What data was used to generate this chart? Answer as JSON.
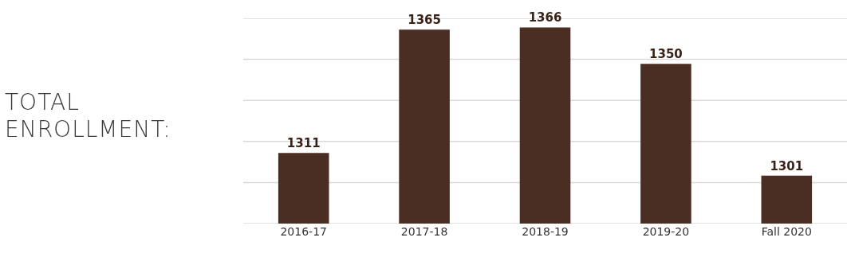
{
  "chart_data": {
    "type": "bar",
    "title": "TOTAL ENROLLMENT:",
    "categories": [
      "2016-17",
      "2017-18",
      "2018-19",
      "2019-20",
      "Fall 2020"
    ],
    "values": [
      1311,
      1365,
      1366,
      1350,
      1301
    ],
    "color": "#4a2e24",
    "data_labels": true,
    "grid": "y",
    "tick_labels": "x",
    "ylim": [
      1280,
      1370
    ],
    "yticks": [
      {
        "value": 1280,
        "label": null
      },
      {
        "value": 1298,
        "label": null
      },
      {
        "value": 1316,
        "label": null
      },
      {
        "value": 1334,
        "label": null
      },
      {
        "value": 1352,
        "label": null
      },
      {
        "value": 1370,
        "label": null
      }
    ]
  }
}
